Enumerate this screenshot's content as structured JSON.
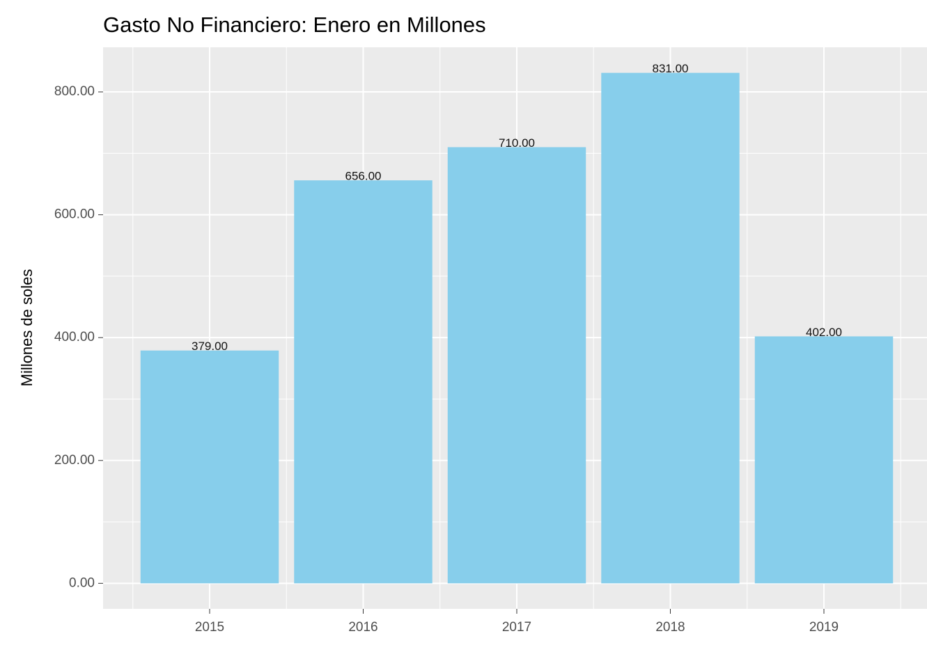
{
  "chart_data": {
    "type": "bar",
    "title": "Gasto No Financiero: Enero  en Millones",
    "y_label": "Millones de soles",
    "categories": [
      "2015",
      "2016",
      "2017",
      "2018",
      "2019"
    ],
    "values": [
      379,
      656,
      710,
      831,
      402
    ],
    "value_labels": [
      "379.00",
      "656.00",
      "710.00",
      "831.00",
      "402.00"
    ],
    "color": "#87ceeb",
    "ylim": [
      -41.55,
      872.55
    ],
    "yticks": [
      {
        "value": 0,
        "label": "0.00"
      },
      {
        "value": 200,
        "label": "200.00"
      },
      {
        "value": 400,
        "label": "400.00"
      },
      {
        "value": 600,
        "label": "600.00"
      },
      {
        "value": 800,
        "label": "800.00"
      }
    ],
    "grid": true
  }
}
